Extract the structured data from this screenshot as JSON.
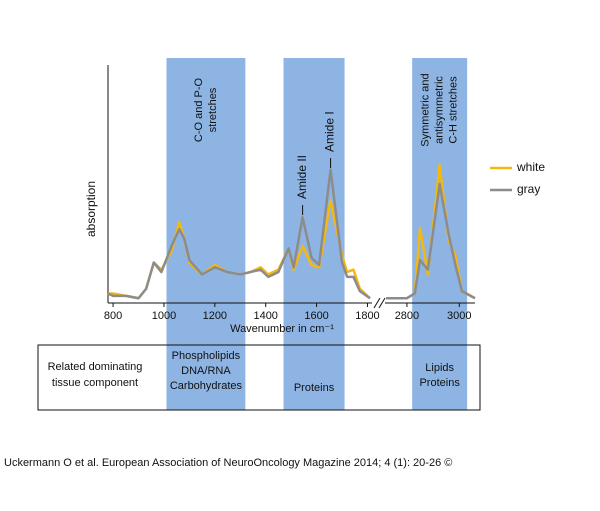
{
  "chart_data": {
    "type": "line",
    "y_label": "absorption",
    "x_label": "Wavenumber  in cm⁻¹",
    "ylim": [
      0,
      100
    ],
    "x_segments": [
      {
        "xlim": [
          780,
          1810
        ],
        "xticks": [
          800,
          1000,
          1200,
          1400,
          1600,
          1800
        ]
      },
      {
        "xlim": [
          2720,
          3060
        ],
        "xticks": [
          2800,
          3000
        ]
      }
    ],
    "x": [
      780,
      800,
      850,
      900,
      930,
      960,
      990,
      1030,
      1060,
      1080,
      1100,
      1150,
      1200,
      1250,
      1300,
      1340,
      1380,
      1410,
      1450,
      1490,
      1510,
      1545,
      1580,
      1610,
      1655,
      1700,
      1720,
      1745,
      1770,
      1810,
      2720,
      2800,
      2830,
      2850,
      2880,
      2925,
      2960,
      2985,
      3010,
      3060
    ],
    "series": [
      {
        "name": "white",
        "color": "#f5b80f",
        "values": [
          4,
          4,
          3,
          2,
          6,
          17,
          14,
          22,
          34,
          27,
          17,
          12,
          16,
          13,
          12,
          13,
          15,
          12,
          14,
          23,
          14,
          24,
          16,
          15,
          43,
          20,
          13,
          14,
          6,
          2,
          2,
          2,
          4,
          31.5,
          12,
          58,
          26,
          20,
          5,
          2
        ]
      },
      {
        "name": "gray",
        "color": "#8c8c8c",
        "values": [
          4,
          3,
          3,
          2,
          6,
          17,
          13,
          24,
          31,
          27,
          18,
          12,
          15,
          13,
          12,
          13,
          14,
          11,
          13,
          23,
          15,
          36,
          19,
          16,
          56,
          17,
          11,
          11,
          5,
          2,
          2,
          2,
          4,
          18,
          14,
          50,
          28.5,
          16,
          5,
          2
        ]
      }
    ],
    "bands": [
      {
        "xlim": [
          1010,
          1320
        ],
        "label": [
          "C-O and P-O",
          "stretches"
        ],
        "component": [
          "Phospholipids",
          "DNA/RNA",
          "Carbohydrates"
        ]
      },
      {
        "xlim": [
          1470,
          1710
        ],
        "label": [],
        "component": [
          "Proteins"
        ]
      },
      {
        "xlim": [
          2820,
          3030
        ],
        "label": [
          "Symmetric and",
          "antisymmetric",
          "C-H stretches"
        ],
        "component": [
          "Lipids",
          "Proteins"
        ]
      }
    ],
    "band_color": "#8eb4e3",
    "annotations": [
      {
        "text": "Amide II",
        "x": 1545
      },
      {
        "text": "Amide I",
        "x": 1655
      }
    ],
    "table_header": [
      "Related dominating",
      "tissue component"
    ],
    "source": "Uckermann O et al. European Association of NeuroOncology Magazine 2014; 4 (1): 20-26 ©"
  }
}
